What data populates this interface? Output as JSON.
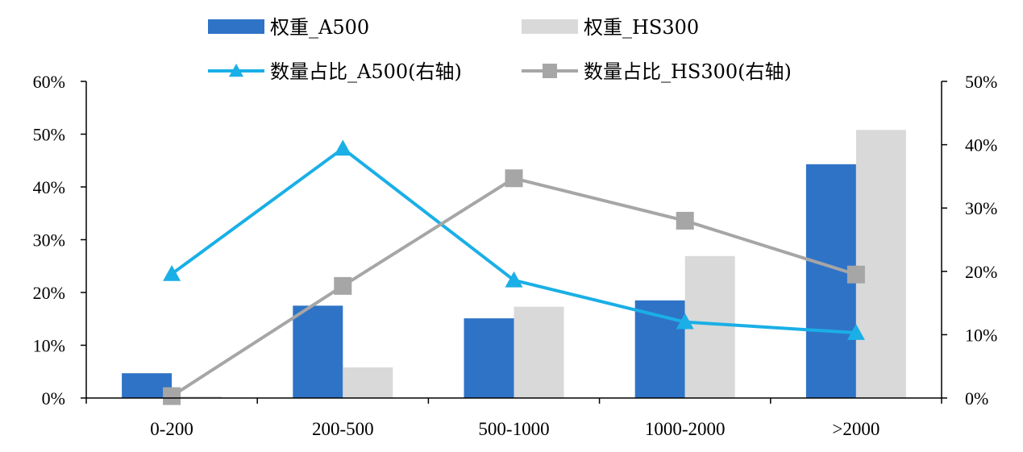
{
  "chart_data": {
    "type": "bar+line",
    "categories": [
      "0-200",
      "200-500",
      "500-1000",
      "1000-2000",
      ">2000"
    ],
    "bar_series": [
      {
        "name": "权重_A500",
        "color": "#2F73C7",
        "values": [
          4.7,
          17.5,
          15.1,
          18.5,
          44.3
        ]
      },
      {
        "name": "权重_HS300",
        "color": "#D9D9D9",
        "values": [
          0.3,
          5.8,
          17.3,
          26.9,
          50.8
        ]
      }
    ],
    "line_series": [
      {
        "name": "数量占比_A500(右轴)",
        "color": "#1AAFE6",
        "marker": "triangle",
        "values": [
          19.6,
          39.4,
          18.6,
          12.0,
          10.3
        ]
      },
      {
        "name": "数量占比_HS300(右轴)",
        "color": "#A6A6A6",
        "marker": "square",
        "values": [
          0.3,
          17.7,
          34.7,
          28.0,
          19.5
        ]
      }
    ],
    "y_left": {
      "min": 0,
      "max": 60,
      "step": 10,
      "tick_labels": [
        "0%",
        "10%",
        "20%",
        "30%",
        "40%",
        "50%",
        "60%"
      ]
    },
    "y_right": {
      "min": 0,
      "max": 50,
      "step": 10,
      "tick_labels": [
        "0%",
        "10%",
        "20%",
        "30%",
        "40%",
        "50%"
      ]
    },
    "grid": false,
    "legend_position": "top"
  }
}
